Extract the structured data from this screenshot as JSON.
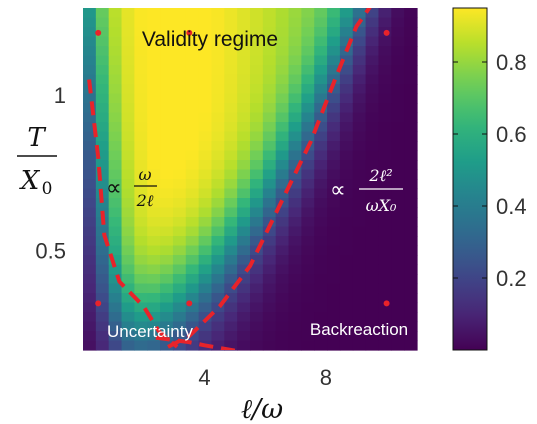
{
  "chart_data": {
    "type": "heatmap",
    "xlabel": "ℓ/ω",
    "ylabel": {
      "numerator": "T",
      "denominator": "X",
      "denominator_subscript": "0"
    },
    "xlim": [
      0,
      11
    ],
    "ylim": [
      0.18,
      1.28
    ],
    "x_ticks": [
      {
        "value": 4,
        "label": "4"
      },
      {
        "value": 8,
        "label": "8"
      }
    ],
    "y_ticks": [
      {
        "value": 0.5,
        "label": "0.5"
      },
      {
        "value": 1,
        "label": "1"
      }
    ],
    "colorbar": {
      "colormap": "viridis",
      "range": [
        0,
        0.95
      ],
      "ticks": [
        {
          "value": 0.2,
          "label": "0.2"
        },
        {
          "value": 0.4,
          "label": "0.4"
        },
        {
          "value": 0.6,
          "label": "0.6"
        },
        {
          "value": 0.8,
          "label": "0.8"
        }
      ]
    },
    "field": {
      "nx": 26,
      "ny": 36,
      "description": "peak near (x=3.2, T/X0=1.2), decaying towards low ℓ/ω, low T/X0 and high ℓ/ω"
    },
    "sample_points": [
      {
        "x": 0.5,
        "y": 1.2
      },
      {
        "x": 3.5,
        "y": 1.2
      },
      {
        "x": 10.0,
        "y": 1.2
      },
      {
        "x": 0.5,
        "y": 0.33
      },
      {
        "x": 3.5,
        "y": 0.33
      },
      {
        "x": 10.0,
        "y": 0.33
      }
    ],
    "boundary_curves": [
      {
        "name": "uncertainty",
        "points": [
          [
            0.2,
            1.05
          ],
          [
            0.5,
            0.8
          ],
          [
            0.7,
            0.55
          ],
          [
            1.2,
            0.4
          ],
          [
            2.0,
            0.32
          ],
          [
            2.5,
            0.24
          ],
          [
            3.1,
            0.19
          ]
        ]
      },
      {
        "name": "low-edge",
        "points": [
          [
            2.4,
            0.22
          ],
          [
            3.5,
            0.205
          ],
          [
            4.0,
            0.195
          ],
          [
            5.2,
            0.175
          ]
        ]
      },
      {
        "name": "backreaction",
        "points": [
          [
            2.8,
            0.19
          ],
          [
            3.5,
            0.225
          ],
          [
            4.5,
            0.32
          ],
          [
            5.5,
            0.45
          ],
          [
            6.5,
            0.65
          ],
          [
            7.5,
            0.85
          ],
          [
            8.3,
            1.05
          ],
          [
            9.0,
            1.22
          ],
          [
            10.0,
            1.36
          ]
        ]
      }
    ],
    "annotations": {
      "validity": "Validity regime",
      "uncertainty": "Uncertainty",
      "backreaction": "Backreaction",
      "prop_symbol": "∝",
      "omega_numerator": "ω",
      "omega_denominator": "2ℓ",
      "back_numerator": "2ℓ²",
      "back_denominator": "ωX₀"
    },
    "colors": {
      "boundary": "#e8232a",
      "points": "#e8232a",
      "annotation_light": "#ffffff",
      "annotation_dark": "#111111"
    }
  }
}
